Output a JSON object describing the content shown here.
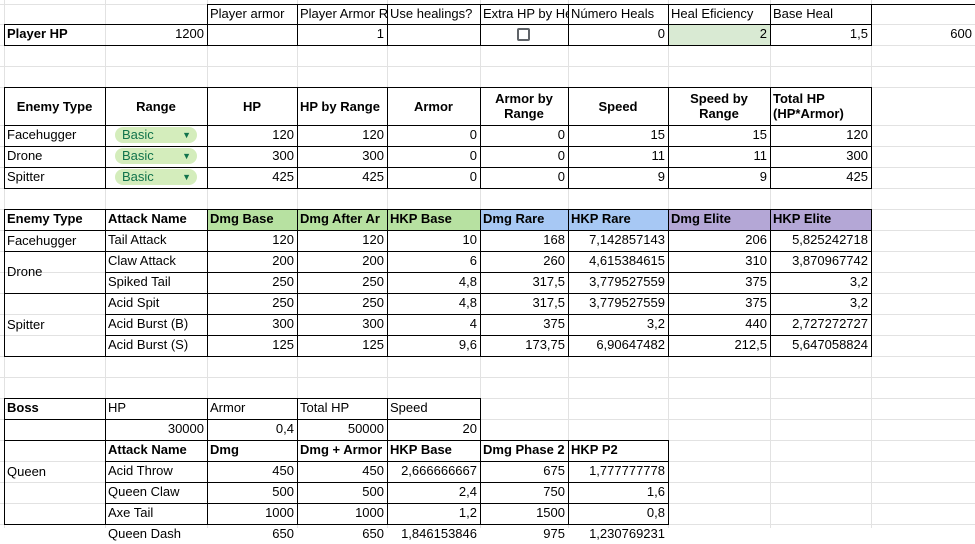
{
  "colors": {
    "gridline": "#e2e2e2",
    "border": "#000000",
    "green_header": "#b7e1a1",
    "blue_header": "#a7c8f4",
    "purple_header": "#b4a7d6",
    "selected_cell": "#d9ead3",
    "chip_bg": "#d4edbc",
    "chip_text": "#11734b"
  },
  "player": {
    "label": "Player HP",
    "hp": "1200",
    "headers": [
      "Player armor",
      "Player Armor Reduction",
      "Use healings?",
      "Extra HP by Hea",
      "Número Heals",
      "Heal Eficiency",
      "Base Heal"
    ],
    "armor": "",
    "armor_reduction": "1",
    "use_healings": false,
    "extra_hp": "0",
    "numero_heals": "2",
    "heal_efficiency": "1,5",
    "base_heal": "600"
  },
  "enemies": {
    "headers": [
      "Enemy Type",
      "Range",
      "HP",
      "HP by Range",
      "Armor",
      "Armor by Range",
      "Speed",
      "Speed by Range",
      "Total HP (HP*Armor)"
    ],
    "rows": [
      {
        "type": "Facehugger",
        "range": "Basic",
        "hp": "120",
        "hp_range": "120",
        "armor": "0",
        "armor_range": "0",
        "speed": "15",
        "speed_range": "15",
        "total": "120"
      },
      {
        "type": "Drone",
        "range": "Basic",
        "hp": "300",
        "hp_range": "300",
        "armor": "0",
        "armor_range": "0",
        "speed": "11",
        "speed_range": "11",
        "total": "300"
      },
      {
        "type": "Spitter",
        "range": "Basic",
        "hp": "425",
        "hp_range": "425",
        "armor": "0",
        "armor_range": "0",
        "speed": "9",
        "speed_range": "9",
        "total": "425"
      }
    ]
  },
  "attacks": {
    "headers": [
      "Enemy Type",
      "Attack Name",
      "Dmg Base",
      "Dmg After Ar",
      "HKP Base",
      "Dmg Rare",
      "HKP Rare",
      "Dmg Elite",
      "HKP Elite"
    ],
    "groups": [
      {
        "type": "Facehugger",
        "rows": [
          [
            "Tail Attack",
            "120",
            "120",
            "10",
            "168",
            "7,142857143",
            "206",
            "5,825242718"
          ]
        ]
      },
      {
        "type": "Drone",
        "rows": [
          [
            "Claw Attack",
            "200",
            "200",
            "6",
            "260",
            "4,615384615",
            "310",
            "3,870967742"
          ],
          [
            "Spiked Tail",
            "250",
            "250",
            "4,8",
            "317,5",
            "3,779527559",
            "375",
            "3,2"
          ]
        ]
      },
      {
        "type": "Spitter",
        "rows": [
          [
            "Acid Spit",
            "250",
            "250",
            "4,8",
            "317,5",
            "3,779527559",
            "375",
            "3,2"
          ],
          [
            "Acid Burst (B)",
            "300",
            "300",
            "4",
            "375",
            "3,2",
            "440",
            "2,727272727"
          ],
          [
            "Acid Burst (S)",
            "125",
            "125",
            "9,6",
            "173,75",
            "6,90647482",
            "212,5",
            "5,647058824"
          ]
        ]
      }
    ]
  },
  "boss": {
    "label": "Boss",
    "name": "Queen",
    "headers": [
      "HP",
      "Armor",
      "Total HP",
      "Speed"
    ],
    "values": [
      "30000",
      "0,4",
      "50000",
      "20"
    ],
    "attack_headers": [
      "Attack Name",
      "Dmg",
      "Dmg + Armor",
      "HKP Base",
      "Dmg Phase 2",
      "HKP P2"
    ],
    "attacks": [
      [
        "Acid Throw",
        "450",
        "450",
        "2,666666667",
        "675",
        "1,777777778"
      ],
      [
        "Queen Claw",
        "500",
        "500",
        "2,4",
        "750",
        "1,6"
      ],
      [
        "Axe Tail",
        "1000",
        "1000",
        "1,2",
        "1500",
        "0,8"
      ],
      [
        "Queen Dash",
        "650",
        "650",
        "1,846153846",
        "975",
        "1,230769231"
      ]
    ]
  }
}
